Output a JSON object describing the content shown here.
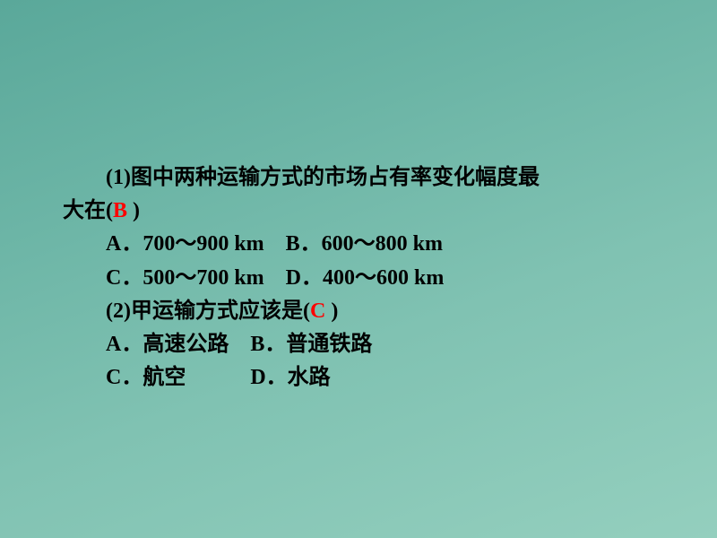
{
  "text_color": "#000000",
  "answer_color": "#ff0000",
  "background_gradient": [
    "#5aa89a",
    "#6cb5a6",
    "#80c2b2",
    "#94cfbe"
  ],
  "font_family": "SimSun",
  "base_fontsize": 24,
  "q1": {
    "stem_line1": "(1)图中两种运输方式的市场占有率变化幅度最",
    "stem_line2_pre": "大在(",
    "answer": "B",
    "stem_line2_post": "  )",
    "opt_a": "A．700～900 km",
    "opt_b": "B．600～800 km",
    "opt_c": "C．500～700 km",
    "opt_d": "D．400～600 km"
  },
  "q2": {
    "stem_pre": "(2)甲运输方式应该是(",
    "answer": "C",
    "stem_post": " )",
    "opt_a": "A．高速公路",
    "opt_b": "B．普通铁路",
    "opt_c": "C．航空",
    "opt_d": "D．水路"
  }
}
